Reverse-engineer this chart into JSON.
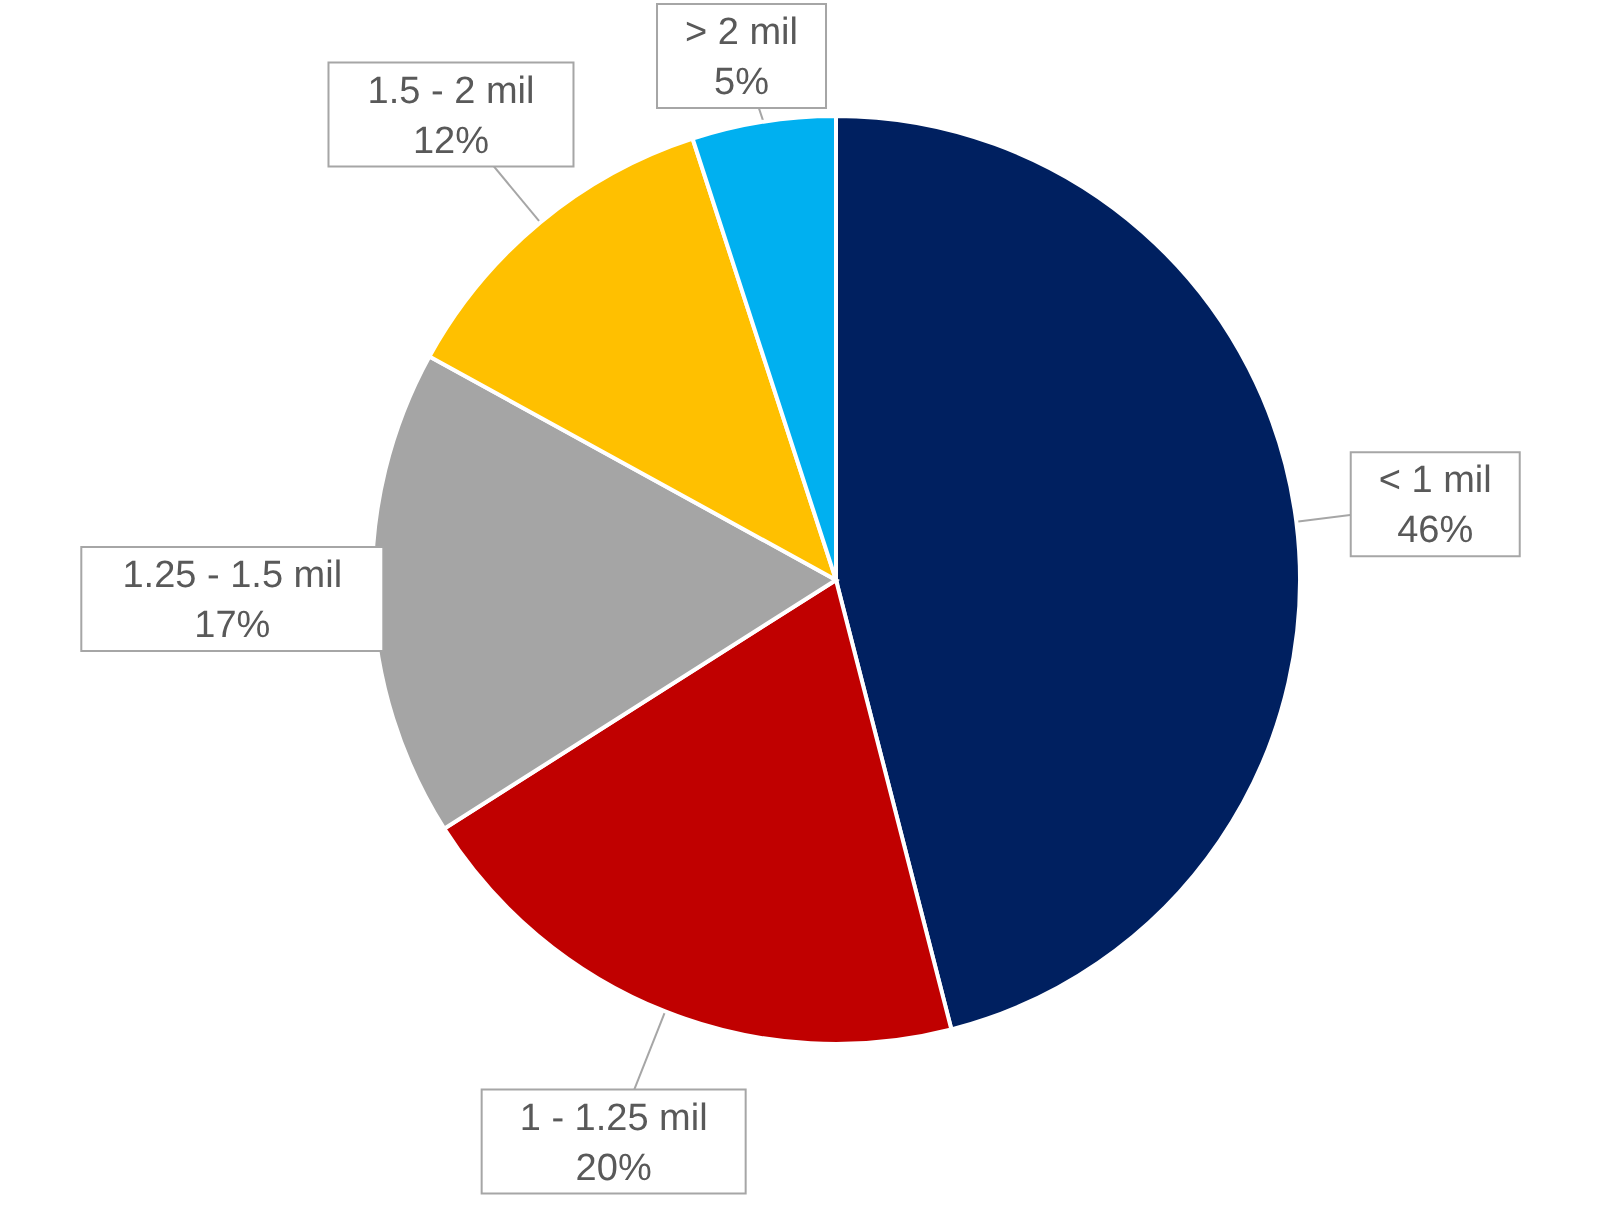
{
  "chart_data": {
    "type": "pie",
    "categories": [
      "< 1 mil",
      "1 - 1.25 mil",
      "1.25 - 1.5 mil",
      "1.5 - 2 mil",
      "> 2 mil"
    ],
    "values": [
      46,
      20,
      17,
      12,
      5
    ],
    "value_labels": [
      "46%",
      "20%",
      "17%",
      "12%",
      "5%"
    ],
    "colors": [
      "#002060",
      "#c00000",
      "#a5a5a5",
      "#ffc000",
      "#00b0f0"
    ]
  }
}
